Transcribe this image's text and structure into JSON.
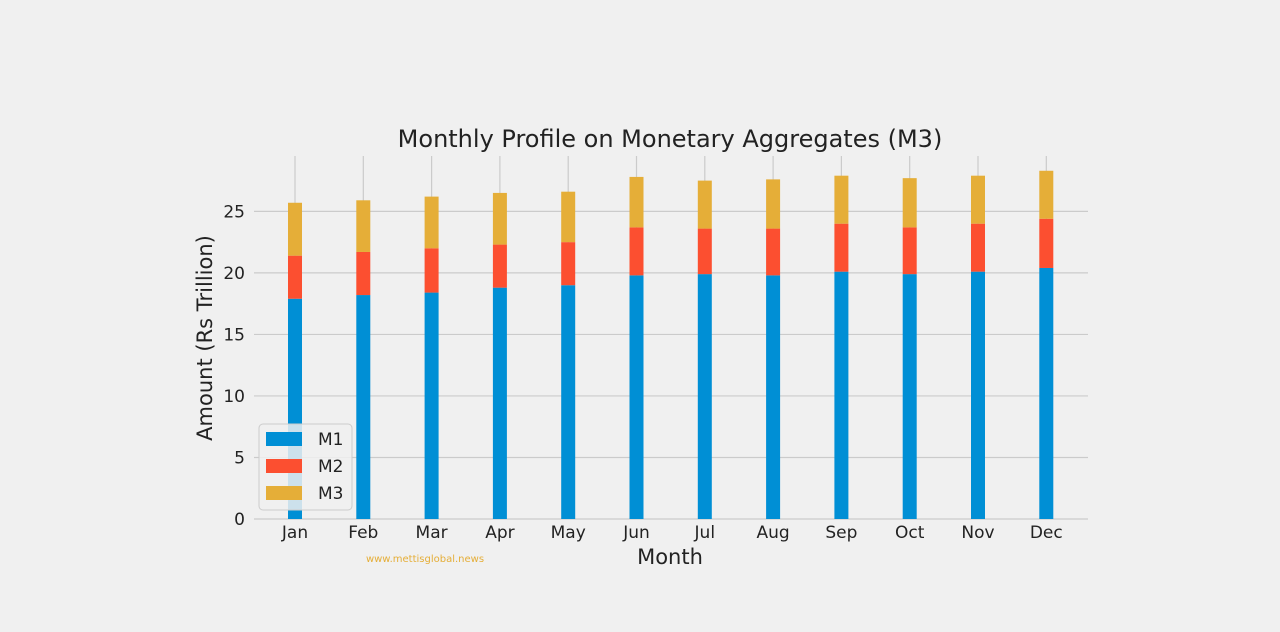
{
  "chart_data": {
    "type": "bar",
    "stacked": true,
    "title": "Monthly Profile on Monetary Aggregates (M3)",
    "xlabel": "Month",
    "ylabel": "Amount (Rs Trillion)",
    "ylim": [
      0,
      29.5
    ],
    "yticks": [
      0,
      5,
      10,
      15,
      20,
      25
    ],
    "grid": true,
    "legend_position": "bottom-left",
    "categories": [
      "Jan",
      "Feb",
      "Mar",
      "Apr",
      "May",
      "Jun",
      "Jul",
      "Aug",
      "Sep",
      "Oct",
      "Nov",
      "Dec"
    ],
    "series": [
      {
        "name": "M1",
        "color": "#008fd5",
        "values": [
          17.9,
          18.2,
          18.4,
          18.8,
          19.0,
          19.8,
          19.9,
          19.8,
          20.1,
          19.9,
          20.1,
          20.4
        ]
      },
      {
        "name": "M2",
        "color": "#fc4f30",
        "values": [
          3.5,
          3.5,
          3.6,
          3.5,
          3.5,
          3.9,
          3.7,
          3.8,
          3.9,
          3.8,
          3.9,
          4.0
        ]
      },
      {
        "name": "M3",
        "color": "#e5ae38",
        "values": [
          4.3,
          4.2,
          4.2,
          4.2,
          4.1,
          4.1,
          3.9,
          4.0,
          3.9,
          4.0,
          3.9,
          3.9
        ]
      }
    ]
  },
  "watermark": {
    "text": "www.mettisglobal.news",
    "color": "#e5ae38"
  }
}
